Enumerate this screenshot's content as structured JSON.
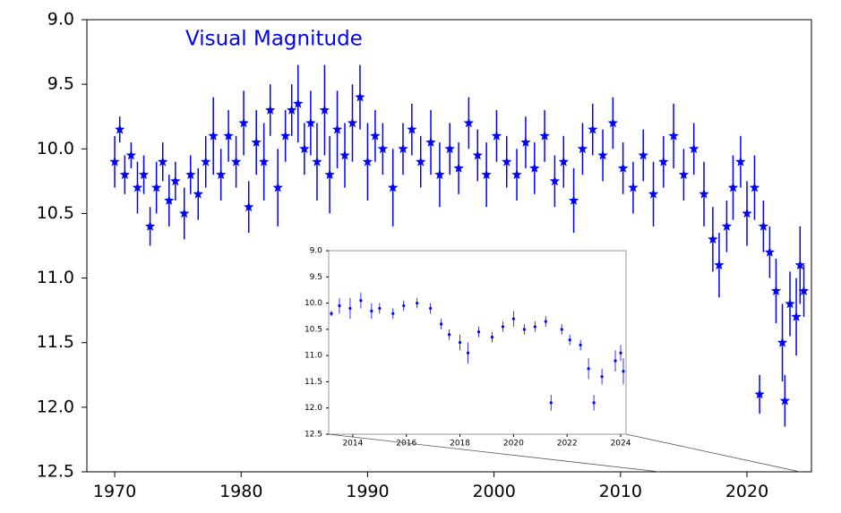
{
  "chart_data": [
    {
      "type": "scatter",
      "title": "Visual Magnitude",
      "color": "#0000ff",
      "marker": "star",
      "y_inverted": true,
      "xlim": [
        1967.8,
        2025.1
      ],
      "xticks": [
        1970,
        1980,
        1990,
        2000,
        2010,
        2020
      ],
      "ylim": [
        9.0,
        12.5
      ],
      "yticks": [
        {
          "value": 9.0,
          "label": "9.0"
        },
        {
          "value": 9.5,
          "label": "9.5"
        },
        {
          "value": 10.0,
          "label": "10.0"
        },
        {
          "value": 10.5,
          "label": "10.5"
        },
        {
          "value": 11.0,
          "label": "11.0"
        },
        {
          "value": 11.5,
          "label": "11.5"
        },
        {
          "value": 12.0,
          "label": "12.0"
        },
        {
          "value": 12.5,
          "label": "12.5"
        }
      ],
      "x": [
        1970.0,
        1970.4,
        1970.8,
        1971.3,
        1971.8,
        1972.3,
        1972.8,
        1973.3,
        1973.8,
        1974.3,
        1974.8,
        1975.5,
        1976.0,
        1976.6,
        1977.2,
        1977.8,
        1978.4,
        1979.0,
        1979.6,
        1980.2,
        1980.6,
        1981.2,
        1981.8,
        1982.3,
        1982.9,
        1983.5,
        1984.0,
        1984.5,
        1985.0,
        1985.5,
        1986.0,
        1986.6,
        1987.0,
        1987.6,
        1988.2,
        1988.8,
        1989.4,
        1990.0,
        1990.6,
        1991.2,
        1992.0,
        1992.8,
        1993.5,
        1994.2,
        1995.0,
        1995.7,
        1996.5,
        1997.2,
        1998.0,
        1998.7,
        1999.4,
        2000.2,
        2001.0,
        2001.8,
        2002.5,
        2003.2,
        2004.0,
        2004.8,
        2005.5,
        2006.3,
        2007.0,
        2007.8,
        2008.6,
        2009.4,
        2010.2,
        2011.0,
        2011.8,
        2012.6,
        2013.4,
        2014.2,
        2015.0,
        2015.8,
        2016.6,
        2017.3,
        2017.8,
        2018.4,
        2018.9,
        2019.5,
        2020.0,
        2020.6,
        2021.0,
        2021.3,
        2021.8,
        2022.3,
        2022.8,
        2023.0,
        2023.4,
        2023.9,
        2024.2,
        2024.5
      ],
      "values": [
        10.1,
        9.85,
        10.2,
        10.05,
        10.3,
        10.2,
        10.6,
        10.3,
        10.1,
        10.4,
        10.25,
        10.5,
        10.2,
        10.35,
        10.1,
        9.9,
        10.2,
        9.9,
        10.1,
        9.8,
        10.45,
        9.95,
        10.1,
        9.7,
        10.3,
        9.9,
        9.7,
        9.65,
        10.0,
        9.8,
        10.1,
        9.7,
        10.2,
        9.85,
        10.05,
        9.8,
        9.6,
        10.1,
        9.9,
        10.0,
        10.3,
        10.0,
        9.85,
        10.1,
        9.95,
        10.2,
        10.0,
        10.15,
        9.8,
        10.05,
        10.2,
        9.9,
        10.1,
        10.2,
        9.95,
        10.15,
        9.9,
        10.25,
        10.1,
        10.4,
        10.0,
        9.85,
        10.05,
        9.8,
        10.15,
        10.3,
        10.05,
        10.35,
        10.1,
        9.9,
        10.2,
        10.0,
        10.35,
        10.7,
        10.9,
        10.6,
        10.3,
        10.1,
        10.5,
        10.3,
        11.9,
        10.6,
        10.8,
        11.1,
        11.5,
        11.95,
        11.2,
        11.3,
        10.9,
        11.1
      ],
      "errors": [
        0.2,
        0.1,
        0.15,
        0.1,
        0.2,
        0.15,
        0.15,
        0.2,
        0.15,
        0.2,
        0.15,
        0.2,
        0.15,
        0.2,
        0.2,
        0.3,
        0.2,
        0.2,
        0.2,
        0.25,
        0.2,
        0.25,
        0.3,
        0.2,
        0.3,
        0.2,
        0.2,
        0.3,
        0.2,
        0.25,
        0.3,
        0.35,
        0.3,
        0.3,
        0.25,
        0.3,
        0.25,
        0.3,
        0.2,
        0.2,
        0.3,
        0.2,
        0.2,
        0.2,
        0.25,
        0.25,
        0.2,
        0.2,
        0.2,
        0.2,
        0.25,
        0.2,
        0.2,
        0.2,
        0.2,
        0.2,
        0.2,
        0.2,
        0.2,
        0.25,
        0.2,
        0.2,
        0.2,
        0.2,
        0.2,
        0.2,
        0.2,
        0.25,
        0.2,
        0.25,
        0.2,
        0.2,
        0.25,
        0.25,
        0.25,
        0.2,
        0.25,
        0.2,
        0.25,
        0.25,
        0.15,
        0.2,
        0.2,
        0.25,
        0.3,
        0.2,
        0.25,
        0.3,
        0.3,
        0.2
      ]
    },
    {
      "type": "scatter",
      "color": "#0000ff",
      "marker": "dot",
      "y_inverted": true,
      "inset": true,
      "xlim": [
        2013.1,
        2024.2
      ],
      "xticks": [
        2014,
        2016,
        2018,
        2020,
        2022,
        2024
      ],
      "ylim": [
        9.0,
        12.5
      ],
      "yticks": [
        {
          "value": 9.0,
          "label": "9.0"
        },
        {
          "value": 9.5,
          "label": "9.5"
        },
        {
          "value": 10.0,
          "label": "10.0"
        },
        {
          "value": 10.5,
          "label": "10.5"
        },
        {
          "value": 11.0,
          "label": "11.0"
        },
        {
          "value": 11.5,
          "label": "11.5"
        },
        {
          "value": 12.0,
          "label": "12.0"
        },
        {
          "value": 12.5,
          "label": "12.5"
        }
      ],
      "x": [
        2013.2,
        2013.5,
        2013.9,
        2014.3,
        2014.7,
        2015.0,
        2015.5,
        2015.9,
        2016.4,
        2016.9,
        2017.3,
        2017.6,
        2018.0,
        2018.3,
        2018.7,
        2019.2,
        2019.6,
        2020.0,
        2020.4,
        2020.8,
        2021.2,
        2021.4,
        2021.8,
        2022.1,
        2022.5,
        2022.8,
        2023.0,
        2023.3,
        2023.8,
        2024.0,
        2024.1
      ],
      "values": [
        10.2,
        10.05,
        10.1,
        9.95,
        10.15,
        10.1,
        10.2,
        10.05,
        10.0,
        10.1,
        10.4,
        10.6,
        10.75,
        10.95,
        10.55,
        10.65,
        10.45,
        10.3,
        10.5,
        10.45,
        10.35,
        11.9,
        10.5,
        10.7,
        10.8,
        11.25,
        11.9,
        11.4,
        11.1,
        10.95,
        11.3
      ],
      "errors": [
        0.05,
        0.15,
        0.2,
        0.15,
        0.15,
        0.1,
        0.1,
        0.1,
        0.1,
        0.1,
        0.1,
        0.1,
        0.15,
        0.2,
        0.1,
        0.1,
        0.1,
        0.15,
        0.1,
        0.1,
        0.1,
        0.15,
        0.1,
        0.1,
        0.1,
        0.2,
        0.15,
        0.15,
        0.2,
        0.15,
        0.25
      ]
    }
  ]
}
